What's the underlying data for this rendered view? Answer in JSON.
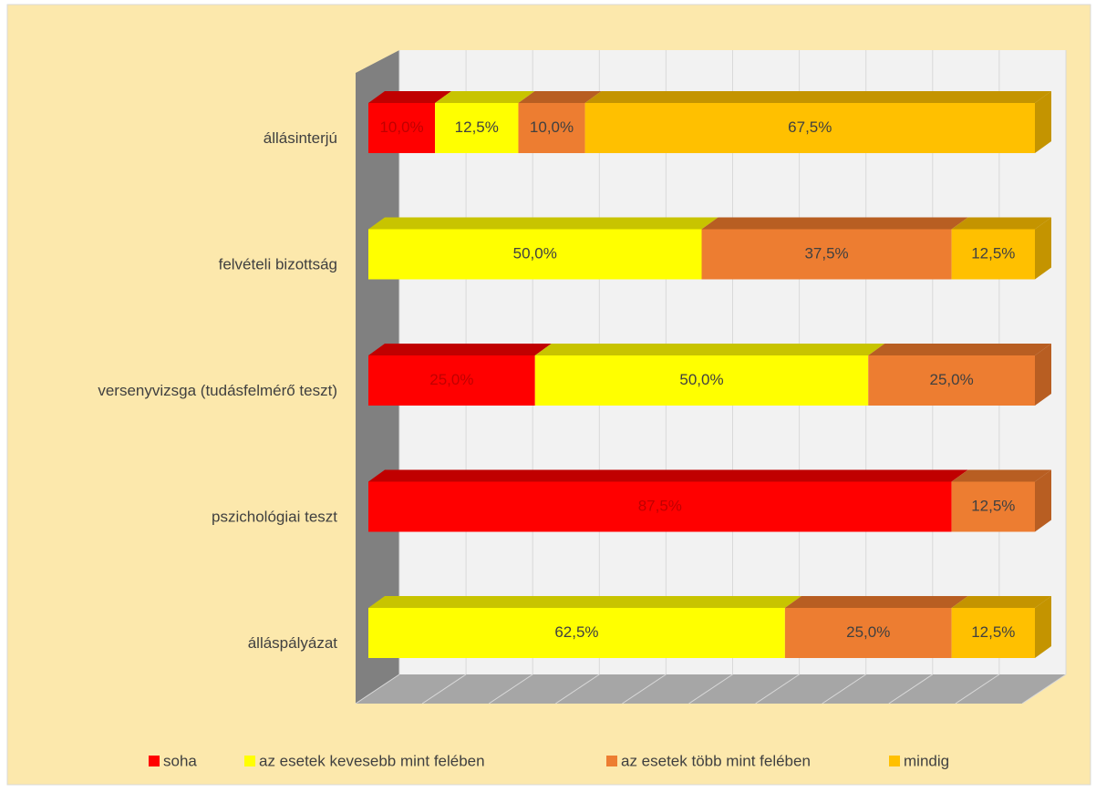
{
  "chart_data": {
    "type": "stacked-bar-3d",
    "categories": [
      "állásinterjú",
      "felvételi bizottság",
      "versenyvizsga (tudásfelmérő teszt)",
      "pszichológiai teszt",
      "álláspályázat"
    ],
    "series": [
      {
        "name": "soha",
        "color": "#ff0000",
        "top_color": "#c00000",
        "label_color": "#c00000",
        "values": [
          10.0,
          null,
          25.0,
          87.5,
          null
        ],
        "value_labels": [
          "10,0%",
          null,
          "25,0%",
          "87,5%",
          null
        ]
      },
      {
        "name": "az esetek kevesebb mint felében",
        "color": "#ffff00",
        "top_color": "#c8c400",
        "label_color": "#404040",
        "values": [
          12.5,
          50.0,
          50.0,
          null,
          62.5
        ],
        "value_labels": [
          "12,5%",
          "50,0%",
          "50,0%",
          null,
          "62,5%"
        ]
      },
      {
        "name": "az esetek több mint felében",
        "color": "#ed7d31",
        "top_color": "#b85e22",
        "label_color": "#404040",
        "values": [
          10.0,
          37.5,
          25.0,
          12.5,
          25.0
        ],
        "value_labels": [
          "10,0%",
          "37,5%",
          "25,0%",
          "12,5%",
          "25,0%"
        ]
      },
      {
        "name": "mindig",
        "color": "#ffc000",
        "top_color": "#c49400",
        "label_color": "#404040",
        "values": [
          67.5,
          12.5,
          null,
          null,
          12.5
        ],
        "value_labels": [
          "67,5%",
          "12,5%",
          null,
          null,
          "12,5%"
        ]
      }
    ],
    "xlim": [
      0,
      100
    ],
    "xticks": [
      0,
      10,
      20,
      30,
      40,
      50,
      60,
      70,
      80,
      90,
      100
    ],
    "grid": true,
    "legend": "bottom"
  }
}
